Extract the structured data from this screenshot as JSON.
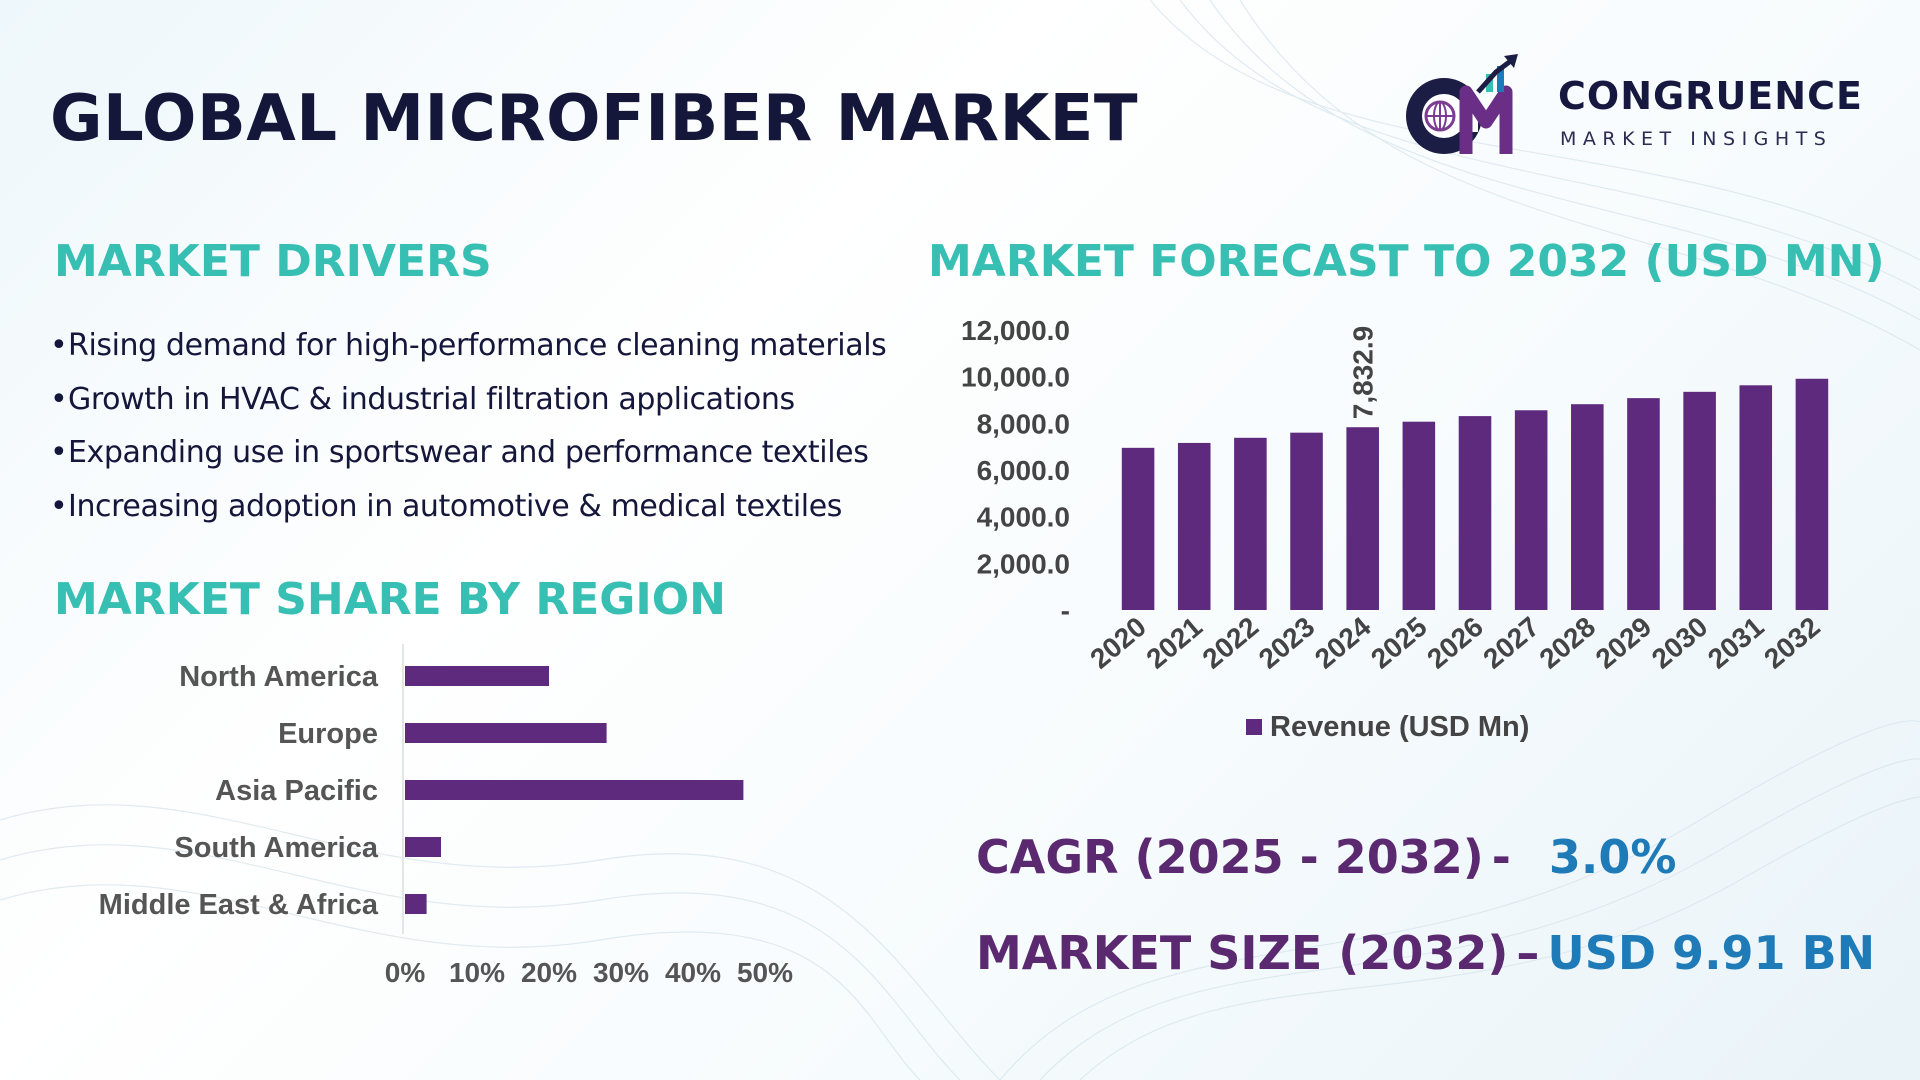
{
  "title": "GLOBAL MICROFIBER MARKET",
  "logo": {
    "name": "CONGRUENCE",
    "tagline": "MARKET INSIGHTS"
  },
  "colors": {
    "bar": "#5e2a7e",
    "heading": "#36bfb2",
    "title": "#14163a",
    "stat_label": "#5a2970",
    "stat_value": "#1f7ab8"
  },
  "drivers": {
    "heading": "MARKET DRIVERS",
    "items": [
      "Rising demand for high-performance cleaning materials",
      "Growth in HVAC & industrial filtration applications",
      "Expanding use in sportswear and performance textiles",
      "Increasing adoption in automotive & medical textiles"
    ]
  },
  "forecast": {
    "heading": "MARKET FORECAST TO 2032 (USD MN)"
  },
  "region": {
    "heading": "MARKET SHARE BY REGION"
  },
  "stats": {
    "cagr_label": "CAGR (2025 - 2032)",
    "cagr_sep": "-",
    "cagr_value": "3.0%",
    "size_label": "MARKET SIZE (2032)",
    "size_sep": "–",
    "size_value": "USD 9.91 BN"
  },
  "chart_data": [
    {
      "type": "bar",
      "title": "MARKET FORECAST TO 2032 (USD MN)",
      "categories": [
        "2020",
        "2021",
        "2022",
        "2023",
        "2024",
        "2025",
        "2026",
        "2027",
        "2028",
        "2029",
        "2030",
        "2031",
        "2032"
      ],
      "series": [
        {
          "name": "Revenue (USD Mn)",
          "values": [
            6950,
            7160,
            7380,
            7600,
            7832.9,
            8070,
            8310,
            8560,
            8820,
            9080,
            9350,
            9630,
            9910
          ]
        }
      ],
      "data_labels": [
        {
          "category": "2024",
          "text": "7,832.9"
        }
      ],
      "yticks": [
        "-",
        "2,000.0",
        "4,000.0",
        "6,000.0",
        "8,000.0",
        "10,000.0",
        "12,000.0"
      ],
      "ylim": [
        0,
        12000
      ],
      "legend_position": "bottom",
      "grid": false
    },
    {
      "type": "bar",
      "orientation": "horizontal",
      "title": "MARKET SHARE BY REGION",
      "categories": [
        "North America",
        "Europe",
        "Asia Pacific",
        "South America",
        "Middle East & Africa"
      ],
      "values": [
        20,
        28,
        47,
        5,
        3
      ],
      "xticks": [
        "0%",
        "10%",
        "20%",
        "30%",
        "40%",
        "50%"
      ],
      "xlim": [
        0,
        50
      ],
      "grid": false
    }
  ]
}
